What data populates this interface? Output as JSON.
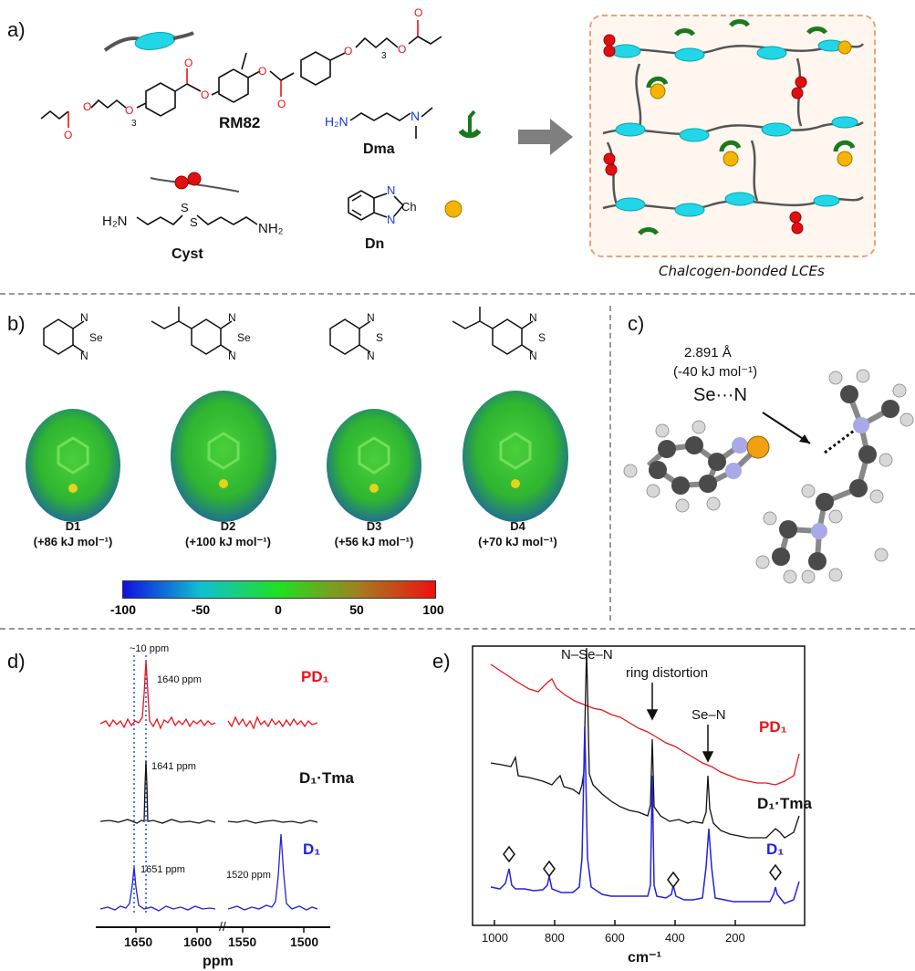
{
  "panel_a": {
    "label": "a)",
    "molecules": {
      "rm82": "RM82",
      "dma": "Dma",
      "cyst": "Cyst",
      "dn": "Dn",
      "ch": "Ch",
      "sub3": "3",
      "h2n": "H₂N",
      "nh2": "NH₂",
      "n": "N",
      "s": "S"
    },
    "lce_caption": "Chalcogen-bonded LCEs"
  },
  "panel_b": {
    "label": "b)",
    "compounds": [
      {
        "name": "D1",
        "energy": "(+86 kJ mol⁻¹)",
        "hetero": "Se"
      },
      {
        "name": "D2",
        "energy": "(+100 kJ mol⁻¹)",
        "hetero": "Se"
      },
      {
        "name": "D3",
        "energy": "(+56 kJ mol⁻¹)",
        "hetero": "S"
      },
      {
        "name": "D4",
        "energy": "(+70 kJ mol⁻¹)",
        "hetero": "S"
      }
    ],
    "colorbar_ticks": [
      "-100",
      "-50",
      "0",
      "50",
      "100"
    ]
  },
  "panel_c": {
    "label": "c)",
    "distance": "2.891 Å",
    "energy": "(-40 kJ mol⁻¹)",
    "interaction": "Se···N"
  },
  "panel_d": {
    "label": "d)",
    "xlabel": "ppm",
    "ticks": [
      "1650",
      "1600",
      "1550",
      "1500"
    ],
    "spacing_note": "~10 ppm",
    "traces": [
      {
        "name": "PD₁",
        "color": "#e8141b",
        "peak_label": "1640 ppm"
      },
      {
        "name": "D₁·Tma",
        "color": "#111111",
        "peak_label": "1641 ppm"
      },
      {
        "name": "D₁",
        "color": "#2222e0",
        "peak_label": "1651 ppm",
        "second_peak_label": "1520 ppm"
      }
    ]
  },
  "panel_e": {
    "label": "e)",
    "xlabel": "cm⁻¹",
    "ticks": [
      "1000",
      "800",
      "600",
      "400",
      "200"
    ],
    "annotations": [
      "N–Se–N",
      "ring distortion",
      "Se–N"
    ],
    "traces": [
      {
        "name": "PD₁",
        "color": "#e8141b"
      },
      {
        "name": "D₁·Tma",
        "color": "#111111"
      },
      {
        "name": "D₁",
        "color": "#2222e0"
      }
    ]
  }
}
